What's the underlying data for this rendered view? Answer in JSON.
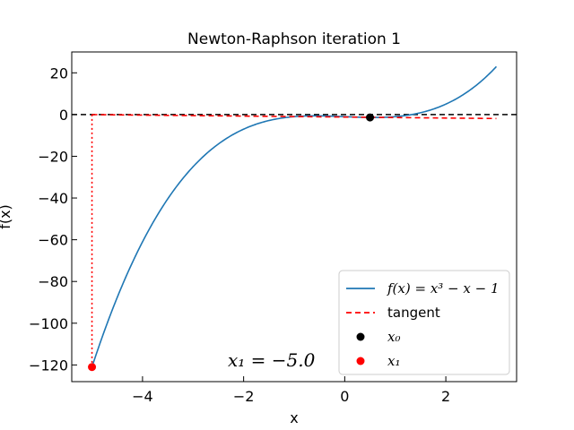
{
  "chart_data": {
    "type": "line",
    "title": "Newton-Raphson iteration 1",
    "xlabel": "x",
    "ylabel": "f(x)",
    "xlim": [
      -5.4,
      3.4
    ],
    "ylim": [
      -128,
      30
    ],
    "x_ticks": [
      -4,
      -2,
      0,
      2
    ],
    "x_tick_labels": [
      "−4",
      "−2",
      "0",
      "2"
    ],
    "y_ticks": [
      -120,
      -100,
      -80,
      -60,
      -40,
      -20,
      0,
      20
    ],
    "y_tick_labels": [
      "−120",
      "−100",
      "−80",
      "−60",
      "−40",
      "−20",
      "0",
      "20"
    ],
    "grid": false,
    "legend_position": "lower-right",
    "function": {
      "expression": "x^3 - x - 1",
      "x_range": [
        -5.0,
        3.0
      ],
      "color": "#1f77b4"
    },
    "tangent": {
      "x_range": [
        -5.0,
        3.0
      ],
      "y_values": [
        -0.03,
        -1.9
      ],
      "color": "#ff0000",
      "style": "dashed"
    },
    "zero_line": {
      "y": 0,
      "color": "#000000",
      "style": "dashed"
    },
    "vertical_drop": {
      "x": -5.0,
      "y_range": [
        0,
        -121
      ],
      "color": "#ff0000",
      "style": "dotted"
    },
    "points": [
      {
        "name": "x0",
        "x": 0.5,
        "y": -1.375,
        "color": "#000000"
      },
      {
        "name": "x1",
        "x": -5.0,
        "y": -121,
        "color": "#ff0000"
      }
    ],
    "legend": [
      {
        "label": "f(x) = x³ − x − 1",
        "marker": "line",
        "color": "#1f77b4"
      },
      {
        "label": "tangent",
        "marker": "dashed",
        "color": "#ff0000"
      },
      {
        "label": "x₀",
        "marker": "dot",
        "color": "#000000"
      },
      {
        "label": "x₁",
        "marker": "dot",
        "color": "#ff0000"
      }
    ],
    "annotation": "x₁ = −5.0"
  }
}
